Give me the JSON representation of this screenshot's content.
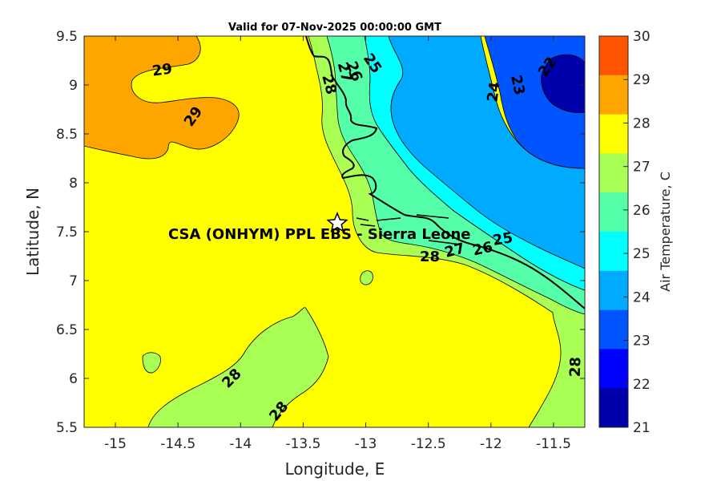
{
  "title": "Valid for 07-Nov-2025 00:00:00 GMT",
  "x_label": "Longitude, E",
  "y_label": "Latitude, N",
  "x_ticks": [
    "-15",
    "-14.5",
    "-14",
    "-13.5",
    "-13",
    "-12.5",
    "-12",
    "-11.5"
  ],
  "y_ticks": [
    "9.5",
    "9",
    "8.5",
    "8",
    "7.5",
    "7",
    "6.5",
    "6",
    "5.5"
  ],
  "colorbar": {
    "label": "Air Temperature, C",
    "ticks": [
      "30",
      "29",
      "28",
      "27",
      "26",
      "25",
      "24",
      "23",
      "22",
      "21"
    ],
    "colors": [
      "#ff5500",
      "#ffa500",
      "#ffff00",
      "#aaff55",
      "#55ffaa",
      "#00ffff",
      "#00aaff",
      "#0055ff",
      "#0000ff",
      "#0000aa"
    ]
  },
  "site": {
    "label": "CSA (ONHYM) PPL EBS - Sierra Leone",
    "lon": -13.23,
    "lat": 7.6
  },
  "contour_labels": {
    "c29_a": "29",
    "c29_b": "29",
    "c28_a": "28",
    "c28_b": "28",
    "c28_c": "28",
    "c28_d": "28",
    "c28_e": "28",
    "c27_a": "27",
    "c27_b": "27",
    "c26_a": "26",
    "c26_b": "26",
    "c25_a": "25",
    "c25_b": "25",
    "c24": "24",
    "c23": "23",
    "c22": "22"
  },
  "map_extent": {
    "lon": [
      -15.25,
      -11.25
    ],
    "lat": [
      5.5,
      9.5
    ]
  }
}
